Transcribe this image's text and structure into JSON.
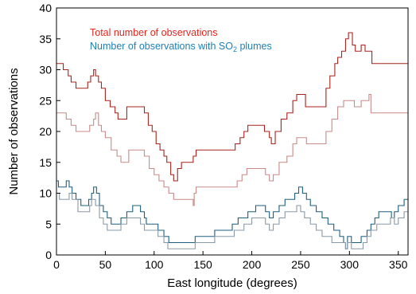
{
  "chart_data": {
    "type": "line",
    "xlabel": "East longitude (degrees)",
    "ylabel": "Number of observations",
    "xlim": [
      0,
      360
    ],
    "ylim": [
      0,
      40
    ],
    "xticks": [
      "0",
      "50",
      "100",
      "150",
      "200",
      "250",
      "300",
      "350"
    ],
    "yticks": [
      "0",
      "5",
      "10",
      "15",
      "20",
      "25",
      "30",
      "35",
      "40"
    ],
    "grid": false,
    "legend": {
      "placement": "top-left",
      "entries": [
        {
          "label": "Total number of observations",
          "color": "#e8241c"
        },
        {
          "label_main": "Number of observations with SO",
          "label_sub": "2",
          "label_tail": " plumes",
          "color": "#1f7fb4"
        }
      ]
    },
    "colors": {
      "total_dark": "#a8231d",
      "total_light": "#c98a88",
      "so2_dark": "#1e5f80",
      "so2_light": "#8a9aa5"
    },
    "series": [
      {
        "key": "total_dark",
        "color": "#a8231d",
        "points": [
          [
            0,
            31
          ],
          [
            5,
            31
          ],
          [
            7,
            30
          ],
          [
            12,
            29
          ],
          [
            15,
            28
          ],
          [
            20,
            27
          ],
          [
            28,
            27
          ],
          [
            32,
            28
          ],
          [
            35,
            29
          ],
          [
            38,
            30
          ],
          [
            40,
            29
          ],
          [
            43,
            28
          ],
          [
            46,
            27
          ],
          [
            50,
            25
          ],
          [
            55,
            24
          ],
          [
            60,
            23
          ],
          [
            63,
            22
          ],
          [
            70,
            22
          ],
          [
            72,
            24
          ],
          [
            85,
            24
          ],
          [
            90,
            23
          ],
          [
            94,
            21
          ],
          [
            98,
            20
          ],
          [
            102,
            18
          ],
          [
            106,
            17
          ],
          [
            110,
            16
          ],
          [
            113,
            15
          ],
          [
            117,
            13
          ],
          [
            120,
            12
          ],
          [
            124,
            14
          ],
          [
            128,
            15
          ],
          [
            138,
            15
          ],
          [
            140,
            16
          ],
          [
            143,
            17
          ],
          [
            180,
            17
          ],
          [
            183,
            18
          ],
          [
            188,
            19
          ],
          [
            192,
            20
          ],
          [
            196,
            21
          ],
          [
            210,
            21
          ],
          [
            213,
            20
          ],
          [
            218,
            19
          ],
          [
            220,
            18
          ],
          [
            224,
            20
          ],
          [
            230,
            22
          ],
          [
            236,
            23
          ],
          [
            242,
            25
          ],
          [
            246,
            26
          ],
          [
            252,
            26
          ],
          [
            255,
            24
          ],
          [
            270,
            24
          ],
          [
            276,
            27
          ],
          [
            280,
            29
          ],
          [
            285,
            31
          ],
          [
            288,
            32
          ],
          [
            292,
            33
          ],
          [
            296,
            35
          ],
          [
            299,
            36
          ],
          [
            303,
            34
          ],
          [
            306,
            33
          ],
          [
            312,
            34
          ],
          [
            316,
            33
          ],
          [
            322,
            33
          ],
          [
            323,
            31
          ],
          [
            360,
            31
          ]
        ]
      },
      {
        "key": "total_light",
        "color": "#c98a88",
        "points": [
          [
            0,
            23
          ],
          [
            5,
            23
          ],
          [
            10,
            22
          ],
          [
            15,
            21
          ],
          [
            20,
            20
          ],
          [
            30,
            20
          ],
          [
            34,
            21
          ],
          [
            38,
            22
          ],
          [
            40,
            23
          ],
          [
            43,
            21
          ],
          [
            46,
            20
          ],
          [
            50,
            19
          ],
          [
            56,
            17
          ],
          [
            62,
            16
          ],
          [
            66,
            15
          ],
          [
            72,
            15
          ],
          [
            74,
            17
          ],
          [
            85,
            17
          ],
          [
            90,
            16
          ],
          [
            95,
            14
          ],
          [
            100,
            13
          ],
          [
            105,
            12
          ],
          [
            110,
            11
          ],
          [
            115,
            10
          ],
          [
            120,
            9
          ],
          [
            140,
            9
          ],
          [
            140,
            8
          ],
          [
            141,
            10
          ],
          [
            143,
            11
          ],
          [
            180,
            11
          ],
          [
            185,
            12
          ],
          [
            190,
            13
          ],
          [
            195,
            14
          ],
          [
            210,
            14
          ],
          [
            214,
            13
          ],
          [
            218,
            12
          ],
          [
            222,
            13
          ],
          [
            228,
            15
          ],
          [
            236,
            16
          ],
          [
            242,
            18
          ],
          [
            246,
            19
          ],
          [
            252,
            19
          ],
          [
            256,
            18
          ],
          [
            270,
            18
          ],
          [
            276,
            20
          ],
          [
            282,
            22
          ],
          [
            288,
            24
          ],
          [
            294,
            25
          ],
          [
            300,
            25
          ],
          [
            305,
            24
          ],
          [
            312,
            25
          ],
          [
            320,
            26
          ],
          [
            322,
            23
          ],
          [
            360,
            23
          ]
        ]
      },
      {
        "key": "so2_dark",
        "color": "#1e5f80",
        "points": [
          [
            0,
            12
          ],
          [
            2,
            11
          ],
          [
            8,
            11
          ],
          [
            10,
            12
          ],
          [
            13,
            11
          ],
          [
            16,
            10
          ],
          [
            20,
            9
          ],
          [
            25,
            8
          ],
          [
            30,
            8
          ],
          [
            33,
            9
          ],
          [
            36,
            10
          ],
          [
            38,
            11
          ],
          [
            41,
            10
          ],
          [
            44,
            8
          ],
          [
            48,
            7
          ],
          [
            52,
            6
          ],
          [
            56,
            5
          ],
          [
            62,
            5
          ],
          [
            66,
            6
          ],
          [
            72,
            7
          ],
          [
            78,
            8
          ],
          [
            82,
            8
          ],
          [
            86,
            7
          ],
          [
            90,
            6
          ],
          [
            92,
            5
          ],
          [
            98,
            5
          ],
          [
            104,
            4
          ],
          [
            110,
            3
          ],
          [
            115,
            2
          ],
          [
            140,
            2
          ],
          [
            142,
            3
          ],
          [
            160,
            3
          ],
          [
            162,
            4
          ],
          [
            176,
            4
          ],
          [
            180,
            5
          ],
          [
            186,
            6
          ],
          [
            196,
            7
          ],
          [
            204,
            8
          ],
          [
            210,
            8
          ],
          [
            214,
            7
          ],
          [
            218,
            6
          ],
          [
            222,
            7
          ],
          [
            228,
            8
          ],
          [
            234,
            9
          ],
          [
            240,
            9
          ],
          [
            244,
            10
          ],
          [
            248,
            11
          ],
          [
            252,
            10
          ],
          [
            256,
            9
          ],
          [
            260,
            8
          ],
          [
            266,
            7
          ],
          [
            272,
            6
          ],
          [
            278,
            5
          ],
          [
            284,
            4
          ],
          [
            290,
            3
          ],
          [
            294,
            2
          ],
          [
            296,
            1
          ],
          [
            298,
            3
          ],
          [
            302,
            2
          ],
          [
            306,
            2
          ],
          [
            312,
            3
          ],
          [
            318,
            4
          ],
          [
            322,
            5
          ],
          [
            326,
            6
          ],
          [
            330,
            7
          ],
          [
            340,
            7
          ],
          [
            343,
            6
          ],
          [
            346,
            7
          ],
          [
            350,
            8
          ],
          [
            356,
            9
          ],
          [
            360,
            9
          ]
        ]
      },
      {
        "key": "so2_light",
        "color": "#8a9aa5",
        "points": [
          [
            0,
            10
          ],
          [
            3,
            9
          ],
          [
            10,
            9
          ],
          [
            13,
            10
          ],
          [
            16,
            9
          ],
          [
            22,
            7
          ],
          [
            30,
            7
          ],
          [
            34,
            8
          ],
          [
            36,
            9
          ],
          [
            40,
            8
          ],
          [
            44,
            6
          ],
          [
            48,
            5
          ],
          [
            52,
            4
          ],
          [
            60,
            4
          ],
          [
            66,
            5
          ],
          [
            72,
            6
          ],
          [
            80,
            6
          ],
          [
            86,
            5
          ],
          [
            90,
            4
          ],
          [
            98,
            4
          ],
          [
            104,
            3
          ],
          [
            110,
            2
          ],
          [
            114,
            1
          ],
          [
            140,
            1
          ],
          [
            142,
            2
          ],
          [
            160,
            2
          ],
          [
            162,
            3
          ],
          [
            176,
            3
          ],
          [
            182,
            4
          ],
          [
            192,
            5
          ],
          [
            200,
            6
          ],
          [
            210,
            6
          ],
          [
            214,
            5
          ],
          [
            218,
            4
          ],
          [
            222,
            5
          ],
          [
            228,
            6
          ],
          [
            234,
            7
          ],
          [
            242,
            7
          ],
          [
            246,
            8
          ],
          [
            250,
            7
          ],
          [
            254,
            6
          ],
          [
            260,
            5
          ],
          [
            266,
            4
          ],
          [
            272,
            3
          ],
          [
            282,
            2
          ],
          [
            294,
            2
          ],
          [
            296,
            1
          ],
          [
            298,
            2
          ],
          [
            302,
            1
          ],
          [
            310,
            1
          ],
          [
            314,
            2
          ],
          [
            318,
            3
          ],
          [
            322,
            4
          ],
          [
            328,
            5
          ],
          [
            338,
            5
          ],
          [
            342,
            6
          ],
          [
            346,
            5
          ],
          [
            350,
            6
          ],
          [
            356,
            7
          ],
          [
            360,
            7
          ]
        ]
      }
    ]
  }
}
